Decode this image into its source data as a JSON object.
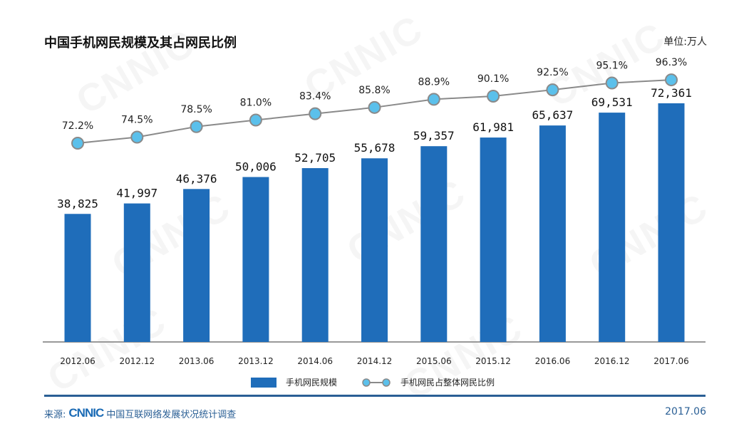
{
  "chart_data": {
    "type": "bar+line",
    "title": "中国手机网民规模及其占网民比例",
    "unit": "单位:万人",
    "categories": [
      "2012.06",
      "2012.12",
      "2013.06",
      "2013.12",
      "2014.06",
      "2014.12",
      "2015.06",
      "2015.12",
      "2016.06",
      "2016.12",
      "2017.06"
    ],
    "series": [
      {
        "name": "手机网民规模",
        "type": "bar",
        "color": "#1f6dba",
        "values": [
          38825,
          41997,
          46376,
          50006,
          52705,
          55678,
          59357,
          61981,
          65637,
          69531,
          72361
        ],
        "labels": [
          "38,825",
          "41,997",
          "46,376",
          "50,006",
          "52,705",
          "55,678",
          "59,357",
          "61,981",
          "65,637",
          "69,531",
          "72,361"
        ]
      },
      {
        "name": "手机网民占整体网民比例",
        "type": "line",
        "color": "#5bc0eb",
        "line_color": "#8a8a8a",
        "values": [
          72.2,
          74.5,
          78.5,
          81.0,
          83.4,
          85.8,
          88.9,
          90.1,
          92.5,
          95.1,
          96.3
        ],
        "labels": [
          "72.2%",
          "74.5%",
          "78.5%",
          "81.0%",
          "83.4%",
          "85.8%",
          "88.9%",
          "90.1%",
          "92.5%",
          "95.1%",
          "96.3%"
        ]
      }
    ],
    "grid": false,
    "legend_position": "bottom"
  },
  "footer": {
    "source_label": "来源:",
    "logo": "CNNIC",
    "source_text": "中国互联网络发展状况统计调查",
    "date": "2017.06"
  }
}
